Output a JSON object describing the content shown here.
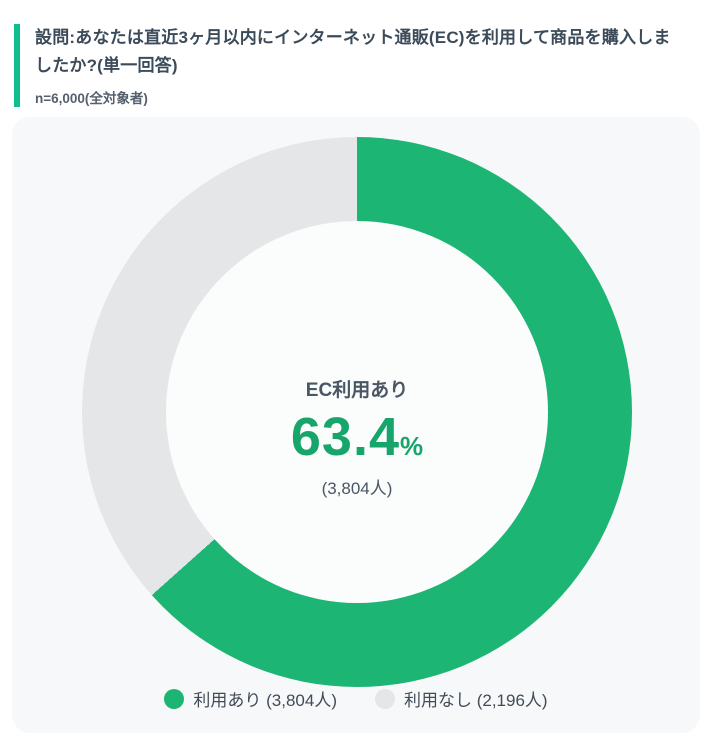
{
  "header": {
    "question": "設問:あなたは直近3ヶ月以内にインターネット通販(EC)を利用して商品を購入しましたか?(単一回答)",
    "sample": "n=6,000(全対象者)"
  },
  "chart_data": {
    "type": "pie",
    "donut": true,
    "title": "",
    "total": 6000,
    "center_label": "EC利用あり",
    "center_value": "63.4",
    "center_unit": "%",
    "center_count": "(3,804人)",
    "start_angle_deg": 0,
    "direction": "clockwise",
    "legend_position": "bottom",
    "slices": [
      {
        "label": "利用あり",
        "value": 3804,
        "percent": 63.4,
        "color": "#1CB573",
        "legend_text": "利用あり (3,804人)"
      },
      {
        "label": "利用なし",
        "value": 2196,
        "percent": 36.6,
        "color": "#E4E6E8",
        "legend_text": "利用なし (2,196人)"
      }
    ]
  },
  "colors": {
    "accent_bar": "#0EBE8C",
    "percent_text": "#17A56B",
    "card_background": "#F7F8F9",
    "hole_background": "#FBFCFC",
    "title_text": "#3C4B5A",
    "center_text": "#4A5663",
    "legend_text": "#414C58"
  }
}
